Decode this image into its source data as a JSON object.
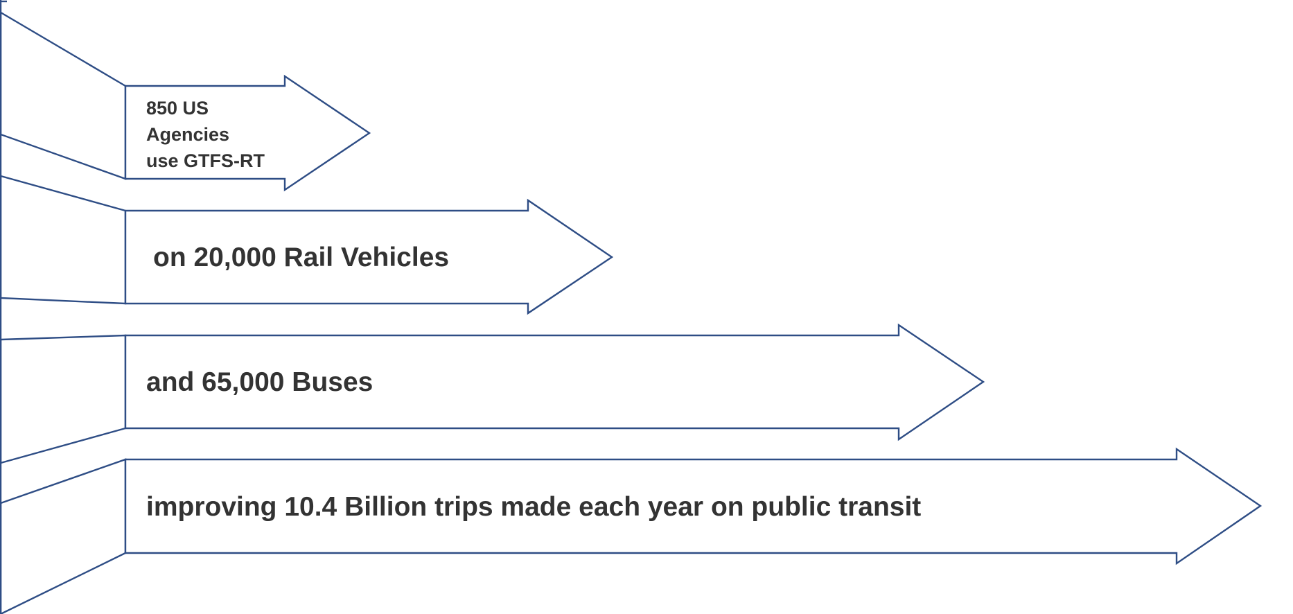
{
  "arrows": [
    {
      "lines": [
        "850 US",
        "Agencies",
        "use GTFS-RT"
      ]
    },
    {
      "lines": [
        "on 20,000 Rail Vehicles"
      ]
    },
    {
      "lines": [
        "and 65,000 Buses"
      ]
    },
    {
      "lines": [
        "improving 10.4 Billion trips made each year on public transit"
      ]
    }
  ],
  "colors": {
    "outline": "#2e4d85",
    "text": "#333333",
    "background": "#ffffff"
  }
}
